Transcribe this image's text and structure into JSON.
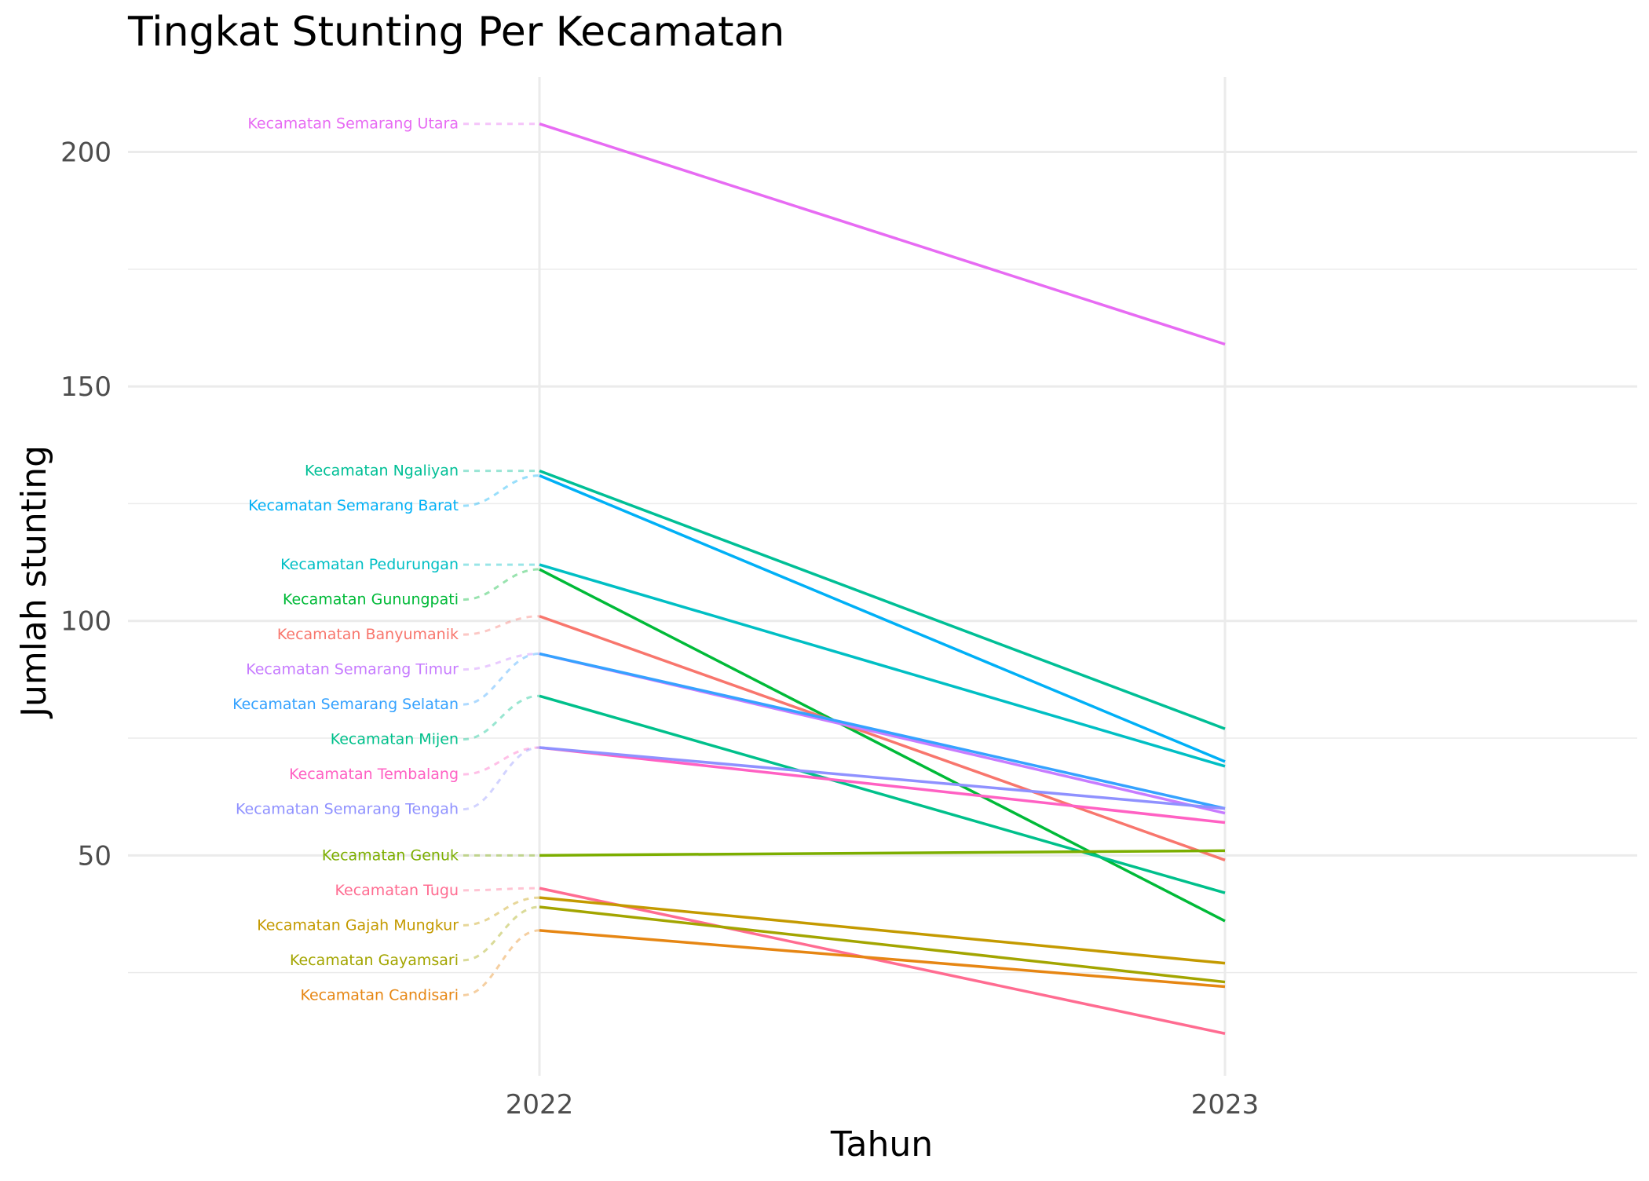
{
  "chart_data": {
    "type": "line",
    "title": "Tingkat Stunting Per Kecamatan",
    "xlabel": "Tahun",
    "ylabel": "Jumlah stunting",
    "x": [
      "2022",
      "2023"
    ],
    "y_ticks": [
      50,
      100,
      150,
      200
    ],
    "ylim": [
      3,
      216
    ],
    "grid": true,
    "legend": "labels at left of 2022 line",
    "series": [
      {
        "name": "Kecamatan Semarang Utara",
        "values": [
          206,
          159
        ],
        "color": "#E76BF3"
      },
      {
        "name": "Kecamatan Ngaliyan",
        "values": [
          132,
          77
        ],
        "color": "#00BF96"
      },
      {
        "name": "Kecamatan Semarang Barat",
        "values": [
          131,
          70
        ],
        "color": "#00B0F6"
      },
      {
        "name": "Kecamatan Pedurungan",
        "values": [
          112,
          69
        ],
        "color": "#00BFC4"
      },
      {
        "name": "Kecamatan Gunungpati",
        "values": [
          111,
          36
        ],
        "color": "#00BA38"
      },
      {
        "name": "Kecamatan Banyumanik",
        "values": [
          101,
          49
        ],
        "color": "#F8766D"
      },
      {
        "name": "Kecamatan Semarang Timur",
        "values": [
          93,
          59
        ],
        "color": "#C77CFF"
      },
      {
        "name": "Kecamatan Semarang Selatan",
        "values": [
          93,
          60
        ],
        "color": "#35A2FF"
      },
      {
        "name": "Kecamatan Mijen",
        "values": [
          84,
          42
        ],
        "color": "#00C08B"
      },
      {
        "name": "Kecamatan Tembalang",
        "values": [
          73,
          57
        ],
        "color": "#FF61C3"
      },
      {
        "name": "Kecamatan Semarang Tengah",
        "values": [
          73,
          60
        ],
        "color": "#8F91FF"
      },
      {
        "name": "Kecamatan Genuk",
        "values": [
          50,
          51
        ],
        "color": "#7CAE00"
      },
      {
        "name": "Kecamatan Tugu",
        "values": [
          43,
          12
        ],
        "color": "#FF6C91"
      },
      {
        "name": "Kecamatan Gajah Mungkur",
        "values": [
          41,
          27
        ],
        "color": "#C49A00"
      },
      {
        "name": "Kecamatan Gayamsari",
        "values": [
          39,
          23
        ],
        "color": "#A3A500"
      },
      {
        "name": "Kecamatan Candisari",
        "values": [
          34,
          22
        ],
        "color": "#E68613"
      }
    ]
  }
}
